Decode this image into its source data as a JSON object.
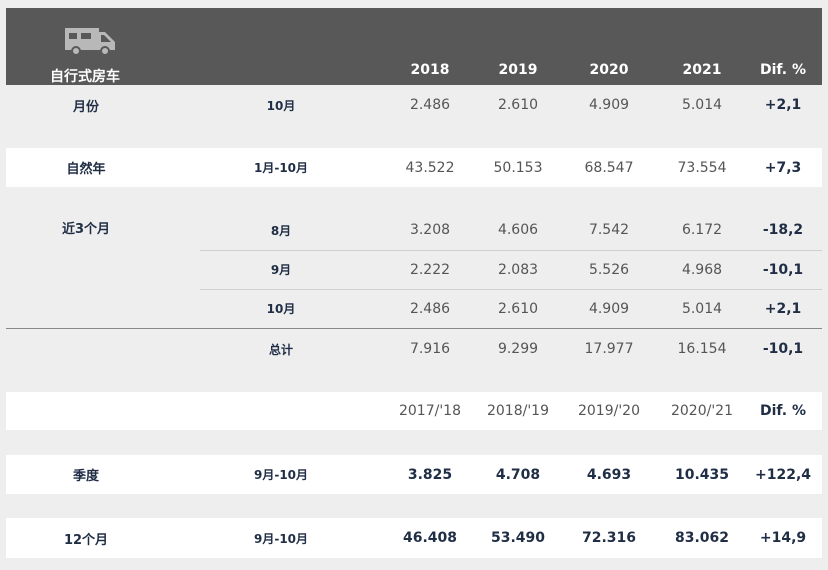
{
  "header": {
    "title": "自行式房车",
    "icon": "camper-van-icon",
    "years": [
      "2018",
      "2019",
      "2020",
      "2021"
    ],
    "dif": "Dif. %"
  },
  "rows": {
    "month": {
      "label": "月份",
      "period": "10月",
      "values": [
        "2.486",
        "2.610",
        "4.909",
        "5.014"
      ],
      "dif": "+2,1"
    },
    "calendar_year": {
      "label": "自然年",
      "period": "1月-10月",
      "values": [
        "43.522",
        "50.153",
        "68.547",
        "73.554"
      ],
      "dif": "+7,3"
    },
    "last3_aug": {
      "label": "近3个月",
      "period": "8月",
      "values": [
        "3.208",
        "4.606",
        "7.542",
        "6.172"
      ],
      "dif": "-18,2"
    },
    "last3_sep": {
      "period": "9月",
      "values": [
        "2.222",
        "2.083",
        "5.526",
        "4.968"
      ],
      "dif": "-10,1"
    },
    "last3_oct": {
      "period": "10月",
      "values": [
        "2.486",
        "2.610",
        "4.909",
        "5.014"
      ],
      "dif": "+2,1"
    },
    "last3_total": {
      "period": "总计",
      "values": [
        "7.916",
        "9.299",
        "17.977",
        "16.154"
      ],
      "dif": "-10,1"
    },
    "season_header": {
      "values": [
        "2017/'18",
        "2018/'19",
        "2019/'20",
        "2020/'21"
      ],
      "dif": "Dif. %"
    },
    "season": {
      "label": "季度",
      "period": "9月-10月",
      "values": [
        "3.825",
        "4.708",
        "4.693",
        "10.435"
      ],
      "dif": "+122,4"
    },
    "twelve_months": {
      "label": "12个月",
      "period": "9月-10月",
      "values": [
        "46.408",
        "53.490",
        "72.316",
        "83.062"
      ],
      "dif": "+14,9"
    }
  },
  "colors": {
    "header_bg": "#585858",
    "page_bg": "#eeeeee",
    "row_bg": "#ffffff",
    "label_text": "#1f2d45"
  }
}
